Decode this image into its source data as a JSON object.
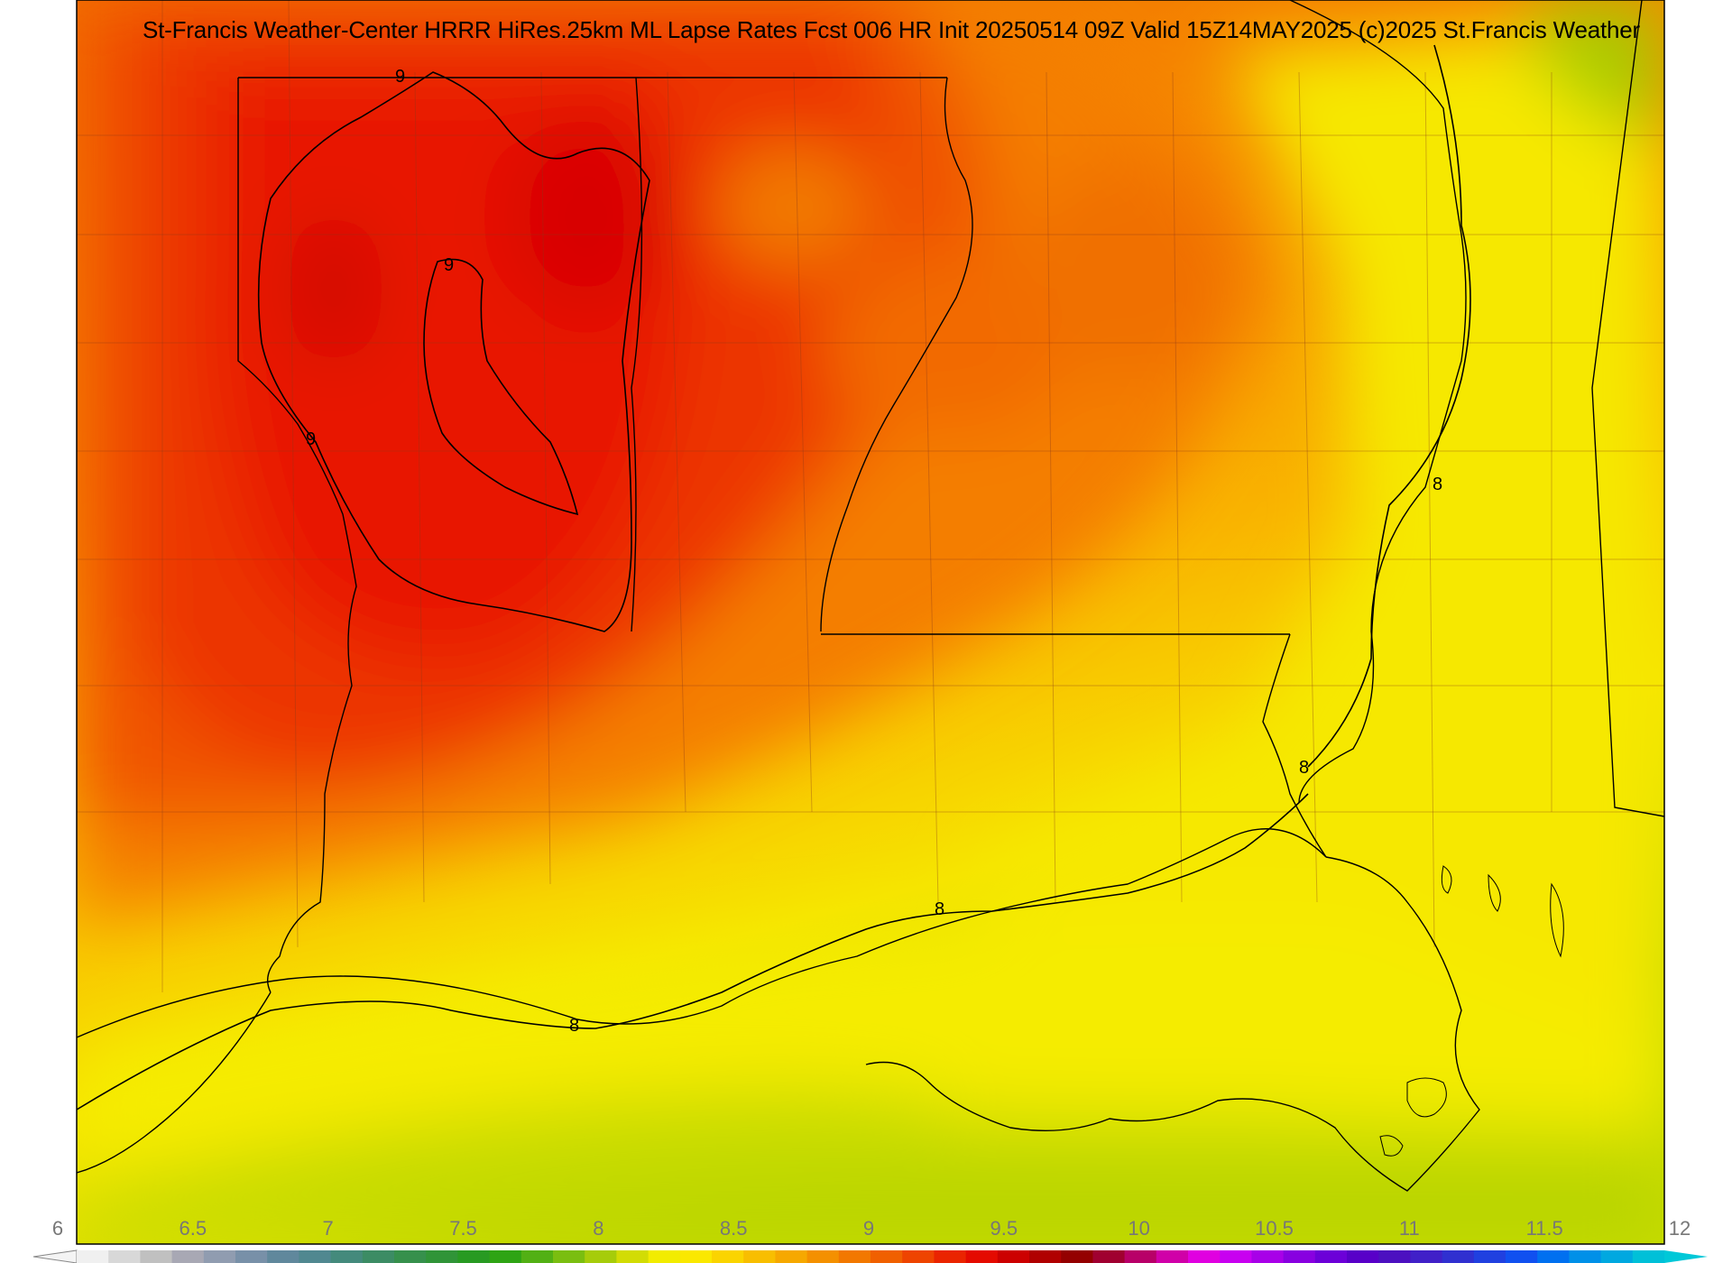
{
  "title": "St-Francis Weather-Center HRRR HiRes.25km ML Lapse Rates  Fcst 006 HR Init 20250514 09Z  Valid 15Z14MAY2025    (c)2025 St.Francis Weather",
  "contour_labels": [
    "9",
    "9",
    "9",
    "8",
    "8",
    "8",
    "8"
  ],
  "colorbar": {
    "ticks": [
      "6",
      "6.5",
      "7",
      "7.5",
      "8",
      "8.5",
      "9",
      "9.5",
      "10",
      "10.5",
      "11",
      "11.5",
      "12"
    ],
    "colors": [
      "#f0f0f0",
      "#d8d8d8",
      "#c0c0c0",
      "#a8a8b4",
      "#909cb0",
      "#7890a8",
      "#60889c",
      "#508890",
      "#448a7c",
      "#3c8c64",
      "#36904c",
      "#309438",
      "#289a22",
      "#2ea414",
      "#52b014",
      "#7abe10",
      "#a6cc0a",
      "#d2dc04",
      "#f2ec00",
      "#fae800",
      "#fad400",
      "#f8be00",
      "#f6a800",
      "#f49000",
      "#f27800",
      "#f06000",
      "#ee4400",
      "#ea2400",
      "#e40a00",
      "#cc0000",
      "#b00000",
      "#940000",
      "#a00030",
      "#b80068",
      "#d000a8",
      "#e000e0",
      "#c800f0",
      "#a800e8",
      "#8800e0",
      "#6c00d8",
      "#5800c8",
      "#4c10c0",
      "#4020c8",
      "#3030d0",
      "#2040e0",
      "#1050f0",
      "#0070f0",
      "#0090e8",
      "#00a8e0",
      "#00c0d8"
    ]
  }
}
